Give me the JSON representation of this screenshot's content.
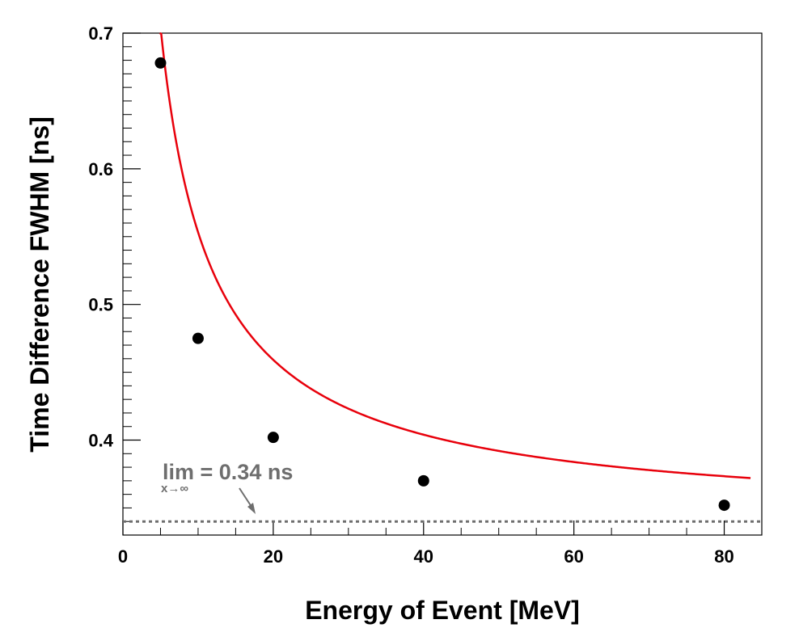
{
  "chart_data": {
    "type": "scatter",
    "title": "",
    "xlabel": "Energy of Event [MeV]",
    "ylabel": "Time Difference FWHM [ns]",
    "xlim": [
      0,
      85
    ],
    "ylim": [
      0.33,
      0.7
    ],
    "x_ticks": [
      0,
      20,
      40,
      60,
      80
    ],
    "x_tick_labels": [
      "0",
      "20",
      "40",
      "60",
      "80"
    ],
    "y_ticks": [
      0.4,
      0.5,
      0.6,
      0.7
    ],
    "y_tick_labels": [
      "0.4",
      "0.5",
      "0.6",
      "0.7"
    ],
    "grid": false,
    "series": [
      {
        "type": "scatter",
        "color": "#000000",
        "x": [
          5,
          10,
          20,
          40,
          80
        ],
        "y": [
          0.678,
          0.475,
          0.402,
          0.37,
          0.352
        ]
      },
      {
        "type": "fit-line",
        "color": "#e8000b",
        "model": "sqrt(a^2 + b^2/x)",
        "a": 0.34,
        "b": 1.38,
        "xrange": [
          4.9,
          83.5
        ]
      },
      {
        "type": "asymptote",
        "color": "#6e6e6e",
        "style": "dotted",
        "y": 0.34
      }
    ],
    "annotation": {
      "text": "lim = 0.34 ns",
      "subscript": "x→∞"
    }
  }
}
